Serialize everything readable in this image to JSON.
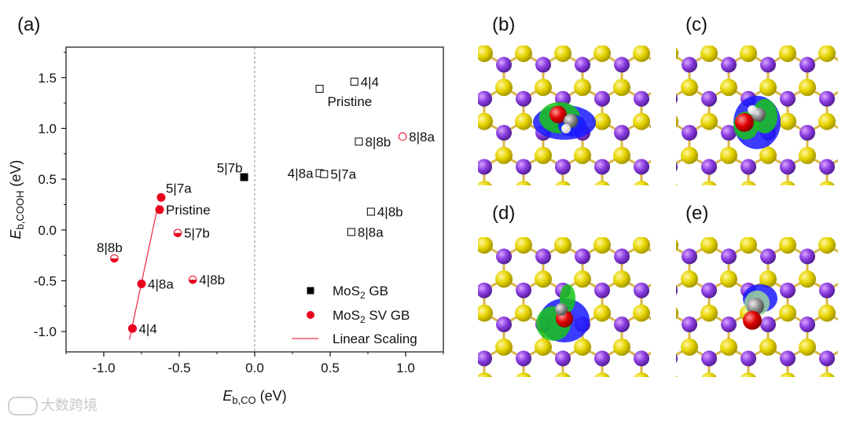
{
  "panel_labels": {
    "a": "(a)",
    "b": "(b)",
    "c": "(c)",
    "d": "(d)",
    "e": "(e)"
  },
  "watermark": "大数跨境",
  "colors": {
    "mos2_gb": "#000000",
    "mos2_sv_gb": "#e8001c",
    "linear_fit": "#e8001c",
    "zero_line": "#888888"
  },
  "chart_data": {
    "type": "scatter",
    "xlabel_main": "E",
    "xlabel_sub": "b,CO",
    "xlabel_unit": " (eV)",
    "ylabel_main": "E",
    "ylabel_sub": "b,COOH",
    "ylabel_unit": " (eV)",
    "xlim": [
      -1.25,
      1.25
    ],
    "ylim": [
      -1.2,
      1.8
    ],
    "xticks": [
      -1.0,
      -0.5,
      0.0,
      0.5,
      1.0
    ],
    "xtick_labels": [
      "-1.0",
      "-0.5",
      "0.0",
      "0.5",
      "1.0"
    ],
    "yticks": [
      -1.0,
      -0.5,
      0.0,
      0.5,
      1.0,
      1.5
    ],
    "ytick_labels": [
      "-1.0",
      "-0.5",
      "0.0",
      "0.5",
      "1.0",
      "1.5"
    ],
    "legend": [
      {
        "label_main": "MoS",
        "label_sub": "2",
        "label_rest": " GB",
        "marker": "square-filled",
        "color": "#000000"
      },
      {
        "label_main": "MoS",
        "label_sub": "2",
        "label_rest": " SV GB",
        "marker": "circle-filled",
        "color": "#e8001c"
      },
      {
        "label_main": "Linear Scaling",
        "label_sub": "",
        "label_rest": "",
        "marker": "line",
        "color": "#e8001c"
      }
    ],
    "legend_position": "bottom-right",
    "series": [
      {
        "name": "MoS2 GB",
        "color": "#000000",
        "points": [
          {
            "label": "4|4",
            "x": 0.66,
            "y": 1.46,
            "style": "open-square",
            "label_pos": "right"
          },
          {
            "label": "Pristine",
            "x": 0.43,
            "y": 1.39,
            "style": "open-square",
            "label_pos": "below-right"
          },
          {
            "label": "8|8b",
            "x": 0.69,
            "y": 0.87,
            "style": "open-square",
            "label_pos": "right"
          },
          {
            "label": "5|7b",
            "x": -0.07,
            "y": 0.52,
            "style": "filled-square",
            "label_pos": "above-left"
          },
          {
            "label": "4|8a",
            "x": 0.43,
            "y": 0.56,
            "style": "open-square",
            "label_pos": "left"
          },
          {
            "label": "5|7a",
            "x": 0.46,
            "y": 0.55,
            "style": "open-square",
            "label_pos": "right"
          },
          {
            "label": "4|8b",
            "x": 0.77,
            "y": 0.18,
            "style": "open-square",
            "label_pos": "right"
          },
          {
            "label": "8|8a",
            "x": 0.64,
            "y": -0.02,
            "style": "open-square",
            "label_pos": "right"
          }
        ]
      },
      {
        "name": "MoS2 SV GB",
        "color": "#e8001c",
        "points": [
          {
            "label": "8|8a",
            "x": 0.98,
            "y": 0.92,
            "style": "open-circle",
            "label_pos": "right"
          },
          {
            "label": "5|7a",
            "x": -0.62,
            "y": 0.32,
            "style": "filled-circle",
            "label_pos": "above-right"
          },
          {
            "label": "Pristine",
            "x": -0.63,
            "y": 0.2,
            "style": "filled-circle",
            "label_pos": "right"
          },
          {
            "label": "5|7b",
            "x": -0.51,
            "y": -0.03,
            "style": "half-circle",
            "label_pos": "right"
          },
          {
            "label": "8|8b",
            "x": -0.93,
            "y": -0.28,
            "style": "half-circle",
            "label_pos": "above"
          },
          {
            "label": "4|8a",
            "x": -0.75,
            "y": -0.53,
            "style": "filled-circle",
            "label_pos": "right"
          },
          {
            "label": "4|8b",
            "x": -0.41,
            "y": -0.49,
            "style": "half-circle",
            "label_pos": "right"
          },
          {
            "label": "4|4",
            "x": -0.81,
            "y": -0.97,
            "style": "filled-circle",
            "label_pos": "right"
          }
        ]
      }
    ],
    "linear_scaling": {
      "x": [
        -0.83,
        -0.64
      ],
      "y": [
        -1.08,
        0.25
      ]
    }
  }
}
